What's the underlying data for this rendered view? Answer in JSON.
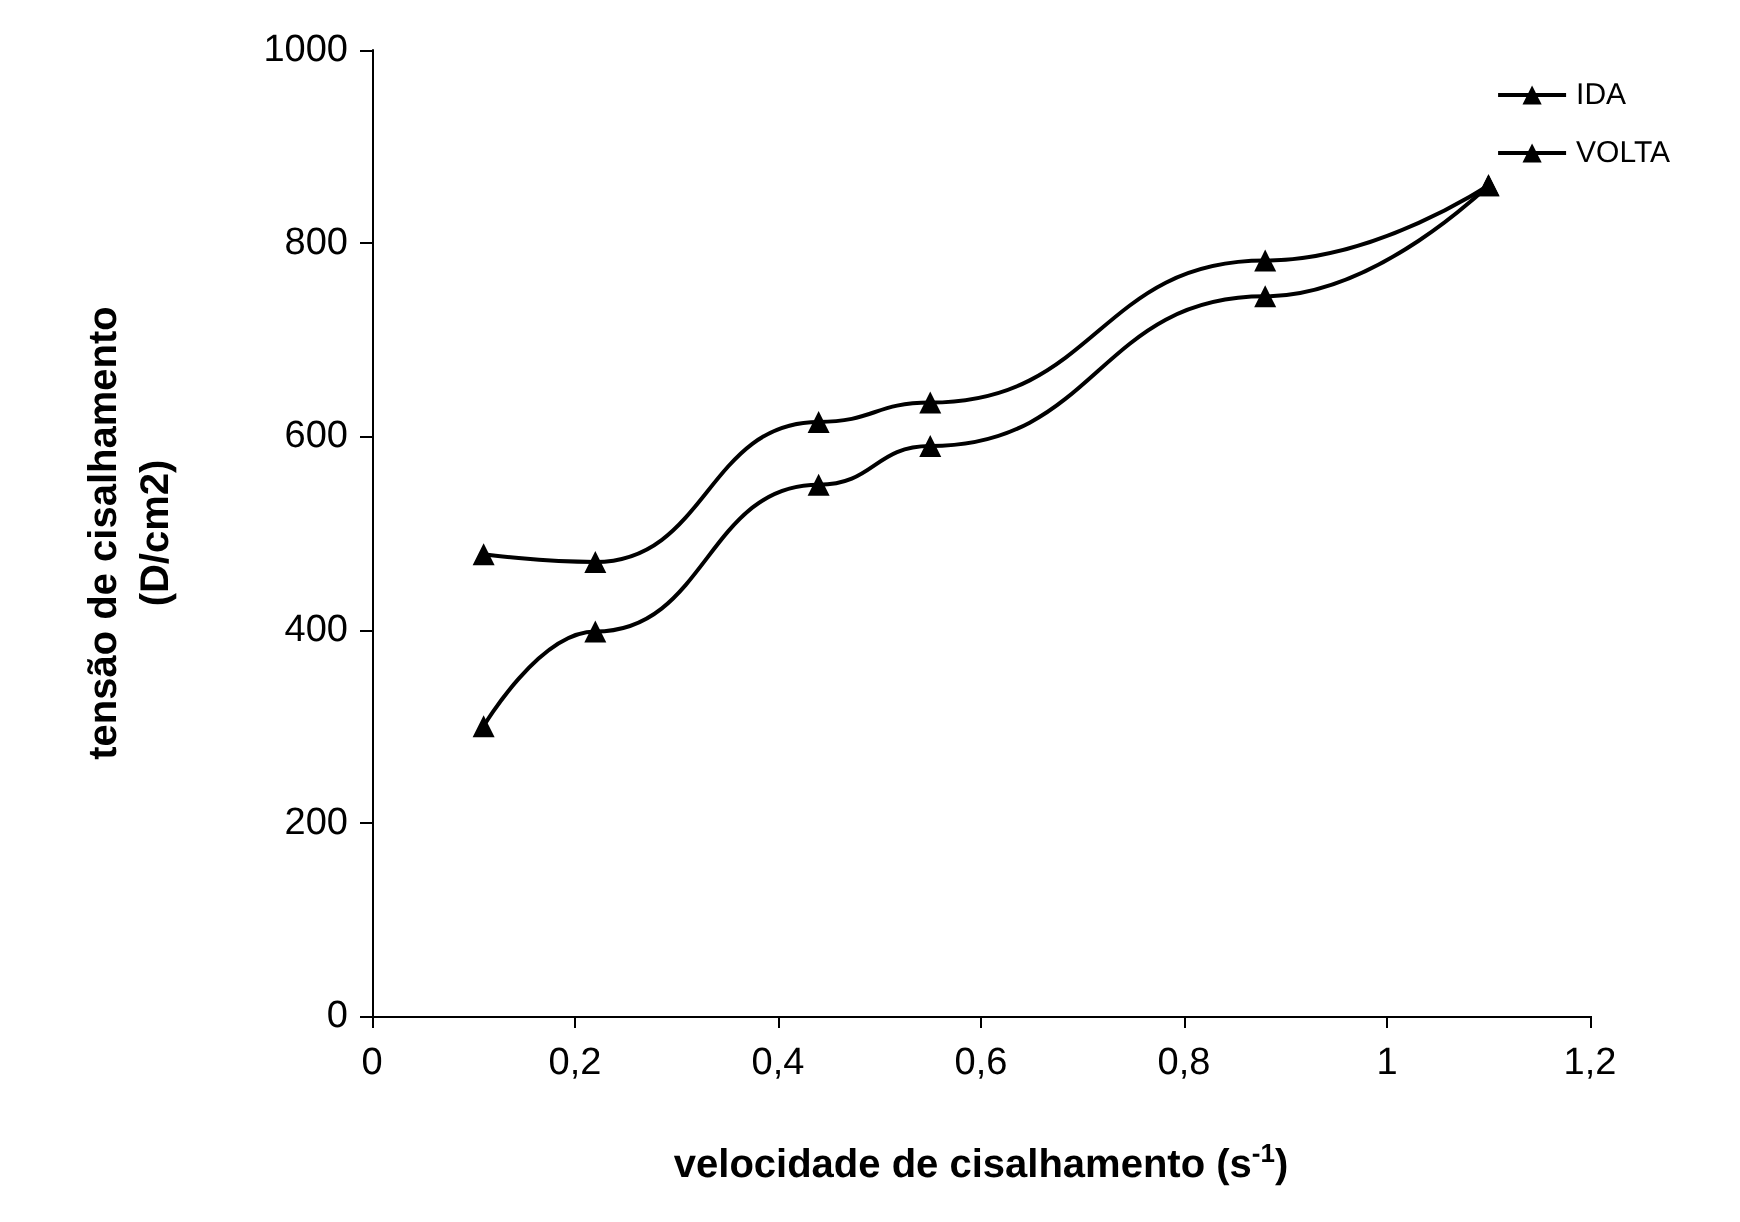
{
  "chart_data": {
    "type": "line",
    "xlabel": "velocidade de cisalhamento (s$^{-1}$)",
    "ylabel": "tensão de cisalhamento\n(D/cm2)",
    "xlim": [
      0,
      1.2
    ],
    "xticks": [
      0,
      {
        "value": 0.2,
        "label": "0,2"
      },
      {
        "value": 0.4,
        "label": "0,4"
      },
      {
        "value": 0.6,
        "label": "0,6"
      },
      {
        "value": 0.8,
        "label": "0,8"
      },
      1,
      {
        "value": 1.2,
        "label": "1,2"
      }
    ],
    "ylim": [
      0,
      1000
    ],
    "yticks": [
      0,
      200,
      400,
      600,
      800,
      1000
    ],
    "x": [
      0.11,
      0.22,
      0.44,
      0.55,
      0.88,
      1.1
    ],
    "series": [
      {
        "name": "IDA",
        "color": "#000000",
        "values": [
          478,
          470,
          615,
          635,
          782,
          860
        ]
      },
      {
        "name": "VOLTA",
        "color": "#000000",
        "values": [
          300,
          398,
          550,
          590,
          745,
          860
        ]
      }
    ],
    "marker": "triangle",
    "line_style": "solid",
    "legend": "top right",
    "grid": false
  }
}
